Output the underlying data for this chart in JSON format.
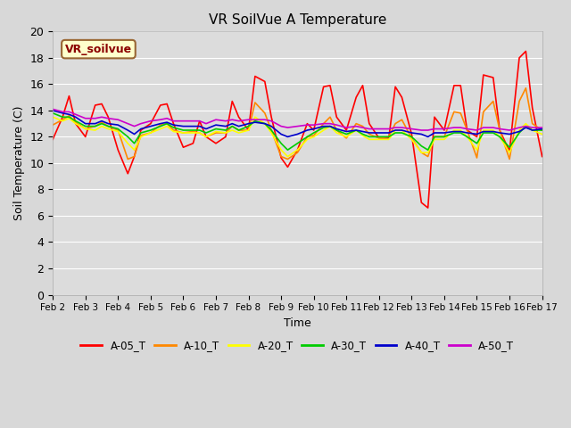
{
  "title": "VR SoilVue A Temperature",
  "xlabel": "Time",
  "ylabel": "Soil Temperature (C)",
  "ylim": [
    0,
    20
  ],
  "xlim": [
    0,
    15
  ],
  "bg_color": "#dcdcdc",
  "grid_color": "#ffffff",
  "fig_bg": "#d8d8d8",
  "label_box_text": "VR_soilvue",
  "label_box_bg": "#ffffcc",
  "label_box_border": "#996633",
  "xtick_labels": [
    "Feb 2",
    "Feb 3",
    "Feb 4",
    "Feb 5",
    "Feb 6",
    "Feb 7",
    "Feb 8",
    "Feb 9",
    "Feb 10",
    "Feb 11",
    "Feb 12",
    "Feb 13",
    "Feb 14",
    "Feb 15",
    "Feb 16",
    "Feb 17"
  ],
  "series": {
    "A-05_T": {
      "color": "#ff0000",
      "lw": 1.2,
      "x": [
        0.0,
        0.3,
        0.5,
        0.7,
        1.0,
        1.3,
        1.5,
        1.7,
        2.0,
        2.3,
        2.5,
        2.7,
        3.0,
        3.3,
        3.5,
        3.7,
        4.0,
        4.3,
        4.5,
        4.7,
        5.0,
        5.3,
        5.5,
        5.7,
        6.0,
        6.2,
        6.5,
        6.7,
        7.0,
        7.2,
        7.5,
        7.8,
        8.0,
        8.3,
        8.5,
        8.7,
        9.0,
        9.3,
        9.5,
        9.7,
        10.0,
        10.3,
        10.5,
        10.7,
        11.0,
        11.3,
        11.5,
        11.7,
        12.0,
        12.3,
        12.5,
        12.7,
        13.0,
        13.2,
        13.5,
        13.7,
        14.0,
        14.3,
        14.5,
        14.7,
        15.0
      ],
      "values": [
        11.8,
        13.5,
        15.1,
        13.0,
        12.0,
        14.4,
        14.5,
        13.5,
        11.0,
        9.2,
        10.5,
        12.5,
        13.0,
        14.4,
        14.5,
        13.0,
        11.2,
        11.5,
        13.2,
        12.0,
        11.5,
        12.0,
        14.7,
        13.5,
        12.5,
        16.6,
        16.2,
        13.5,
        10.4,
        9.7,
        11.0,
        13.0,
        12.5,
        15.8,
        15.9,
        13.5,
        12.5,
        15.0,
        15.9,
        13.0,
        11.9,
        11.9,
        15.8,
        15.0,
        12.2,
        7.0,
        6.6,
        13.5,
        12.5,
        15.9,
        15.9,
        12.5,
        12.0,
        16.7,
        16.5,
        12.5,
        10.9,
        18.0,
        18.5,
        14.2,
        10.5
      ]
    },
    "A-10_T": {
      "color": "#ff8800",
      "lw": 1.2,
      "x": [
        0.0,
        0.3,
        0.5,
        0.7,
        1.0,
        1.3,
        1.5,
        1.7,
        2.0,
        2.3,
        2.5,
        2.7,
        3.0,
        3.3,
        3.5,
        3.7,
        4.0,
        4.3,
        4.5,
        4.7,
        5.0,
        5.3,
        5.5,
        5.7,
        6.0,
        6.2,
        6.5,
        6.7,
        7.0,
        7.2,
        7.5,
        7.8,
        8.0,
        8.3,
        8.5,
        8.7,
        9.0,
        9.3,
        9.5,
        9.7,
        10.0,
        10.3,
        10.5,
        10.7,
        11.0,
        11.3,
        11.5,
        11.7,
        12.0,
        12.3,
        12.5,
        12.7,
        13.0,
        13.2,
        13.5,
        13.7,
        14.0,
        14.3,
        14.5,
        14.7,
        15.0
      ],
      "values": [
        12.9,
        13.3,
        13.6,
        13.1,
        12.6,
        12.8,
        13.1,
        12.8,
        12.5,
        10.3,
        10.5,
        12.1,
        12.3,
        12.9,
        13.0,
        12.5,
        12.3,
        12.4,
        12.3,
        12.0,
        12.3,
        12.3,
        12.8,
        12.5,
        12.5,
        14.6,
        13.8,
        12.5,
        10.5,
        10.3,
        10.8,
        12.0,
        12.1,
        13.0,
        13.5,
        12.5,
        11.9,
        13.0,
        12.8,
        12.2,
        11.9,
        12.0,
        13.0,
        13.3,
        11.9,
        10.8,
        10.5,
        12.0,
        12.0,
        13.9,
        13.8,
        12.5,
        10.4,
        13.9,
        14.7,
        12.5,
        10.3,
        14.7,
        15.7,
        13.0,
        12.5
      ]
    },
    "A-20_T": {
      "color": "#ffff00",
      "lw": 1.2,
      "x": [
        0.0,
        0.3,
        0.5,
        0.7,
        1.0,
        1.3,
        1.5,
        1.7,
        2.0,
        2.3,
        2.5,
        2.7,
        3.0,
        3.3,
        3.5,
        3.7,
        4.0,
        4.3,
        4.5,
        4.7,
        5.0,
        5.3,
        5.5,
        5.7,
        6.0,
        6.2,
        6.5,
        6.7,
        7.0,
        7.2,
        7.5,
        7.8,
        8.0,
        8.3,
        8.5,
        8.7,
        9.0,
        9.3,
        9.5,
        9.7,
        10.0,
        10.3,
        10.5,
        10.7,
        11.0,
        11.3,
        11.5,
        11.7,
        12.0,
        12.3,
        12.5,
        12.7,
        13.0,
        13.2,
        13.5,
        13.7,
        14.0,
        14.3,
        14.5,
        14.7,
        15.0
      ],
      "values": [
        13.5,
        13.2,
        13.4,
        13.0,
        12.6,
        12.5,
        12.8,
        12.6,
        12.4,
        11.5,
        11.0,
        12.0,
        12.3,
        12.6,
        12.8,
        12.4,
        12.3,
        12.3,
        12.3,
        12.0,
        12.4,
        12.3,
        12.5,
        12.3,
        12.5,
        13.5,
        13.0,
        12.3,
        11.0,
        10.5,
        11.0,
        11.8,
        12.0,
        12.5,
        12.8,
        12.3,
        12.0,
        12.5,
        12.1,
        11.8,
        11.8,
        11.8,
        12.5,
        12.5,
        11.8,
        10.8,
        10.8,
        11.8,
        11.8,
        12.5,
        12.5,
        12.0,
        11.0,
        12.5,
        12.5,
        12.0,
        10.8,
        12.5,
        13.0,
        12.5,
        12.2
      ]
    },
    "A-30_T": {
      "color": "#00cc00",
      "lw": 1.2,
      "x": [
        0.0,
        0.3,
        0.5,
        0.7,
        1.0,
        1.3,
        1.5,
        1.7,
        2.0,
        2.3,
        2.5,
        2.7,
        3.0,
        3.3,
        3.5,
        3.7,
        4.0,
        4.3,
        4.5,
        4.7,
        5.0,
        5.3,
        5.5,
        5.7,
        6.0,
        6.2,
        6.5,
        6.7,
        7.0,
        7.2,
        7.5,
        7.8,
        8.0,
        8.3,
        8.5,
        8.7,
        9.0,
        9.3,
        9.5,
        9.7,
        10.0,
        10.3,
        10.5,
        10.7,
        11.0,
        11.3,
        11.5,
        11.7,
        12.0,
        12.3,
        12.5,
        12.7,
        13.0,
        13.2,
        13.5,
        13.7,
        14.0,
        14.3,
        14.5,
        14.7,
        15.0
      ],
      "values": [
        13.8,
        13.5,
        13.5,
        13.2,
        12.8,
        12.8,
        13.0,
        12.8,
        12.6,
        12.0,
        11.5,
        12.3,
        12.5,
        12.8,
        13.0,
        12.7,
        12.5,
        12.5,
        12.5,
        12.3,
        12.6,
        12.5,
        12.8,
        12.5,
        12.8,
        13.2,
        13.0,
        12.5,
        11.5,
        11.0,
        11.5,
        12.0,
        12.3,
        12.7,
        12.8,
        12.5,
        12.2,
        12.5,
        12.2,
        12.0,
        12.0,
        12.0,
        12.3,
        12.3,
        12.0,
        11.3,
        11.0,
        12.0,
        12.0,
        12.3,
        12.3,
        12.0,
        11.5,
        12.3,
        12.3,
        12.0,
        11.2,
        12.3,
        12.8,
        12.5,
        12.5
      ]
    },
    "A-40_T": {
      "color": "#0000cc",
      "lw": 1.2,
      "x": [
        0.0,
        0.3,
        0.5,
        0.7,
        1.0,
        1.3,
        1.5,
        1.7,
        2.0,
        2.3,
        2.5,
        2.7,
        3.0,
        3.3,
        3.5,
        3.7,
        4.0,
        4.3,
        4.5,
        4.7,
        5.0,
        5.3,
        5.5,
        5.7,
        6.0,
        6.2,
        6.5,
        6.7,
        7.0,
        7.2,
        7.5,
        7.8,
        8.0,
        8.3,
        8.5,
        8.7,
        9.0,
        9.3,
        9.5,
        9.7,
        10.0,
        10.3,
        10.5,
        10.7,
        11.0,
        11.3,
        11.5,
        11.7,
        12.0,
        12.3,
        12.5,
        12.7,
        13.0,
        13.2,
        13.5,
        13.7,
        14.0,
        14.3,
        14.5,
        14.7,
        15.0
      ],
      "values": [
        14.0,
        13.8,
        13.7,
        13.5,
        13.0,
        13.0,
        13.2,
        13.0,
        12.9,
        12.5,
        12.2,
        12.6,
        12.8,
        13.0,
        13.1,
        12.9,
        12.8,
        12.8,
        12.8,
        12.6,
        12.9,
        12.8,
        13.0,
        12.8,
        13.0,
        13.1,
        13.0,
        12.8,
        12.2,
        12.0,
        12.2,
        12.5,
        12.6,
        12.8,
        12.8,
        12.6,
        12.4,
        12.5,
        12.4,
        12.3,
        12.3,
        12.3,
        12.5,
        12.5,
        12.3,
        12.2,
        12.0,
        12.3,
        12.3,
        12.4,
        12.4,
        12.3,
        12.2,
        12.4,
        12.4,
        12.3,
        12.2,
        12.4,
        12.7,
        12.5,
        12.6
      ]
    },
    "A-50_T": {
      "color": "#cc00cc",
      "lw": 1.2,
      "x": [
        0.0,
        0.3,
        0.5,
        0.7,
        1.0,
        1.3,
        1.5,
        1.7,
        2.0,
        2.3,
        2.5,
        2.7,
        3.0,
        3.3,
        3.5,
        3.7,
        4.0,
        4.3,
        4.5,
        4.7,
        5.0,
        5.3,
        5.5,
        5.7,
        6.0,
        6.2,
        6.5,
        6.7,
        7.0,
        7.2,
        7.5,
        7.8,
        8.0,
        8.3,
        8.5,
        8.7,
        9.0,
        9.3,
        9.5,
        9.7,
        10.0,
        10.3,
        10.5,
        10.7,
        11.0,
        11.3,
        11.5,
        11.7,
        12.0,
        12.3,
        12.5,
        12.7,
        13.0,
        13.2,
        13.5,
        13.7,
        14.0,
        14.3,
        14.5,
        14.7,
        15.0
      ],
      "values": [
        14.1,
        13.9,
        13.9,
        13.7,
        13.4,
        13.4,
        13.5,
        13.4,
        13.3,
        13.0,
        12.8,
        13.0,
        13.2,
        13.3,
        13.4,
        13.2,
        13.2,
        13.2,
        13.2,
        13.0,
        13.3,
        13.2,
        13.3,
        13.2,
        13.3,
        13.3,
        13.3,
        13.2,
        12.8,
        12.7,
        12.8,
        12.9,
        12.9,
        13.0,
        13.0,
        12.9,
        12.7,
        12.8,
        12.7,
        12.6,
        12.6,
        12.6,
        12.7,
        12.7,
        12.6,
        12.5,
        12.5,
        12.6,
        12.6,
        12.7,
        12.7,
        12.6,
        12.5,
        12.7,
        12.7,
        12.6,
        12.5,
        12.7,
        12.8,
        12.7,
        12.7
      ]
    }
  }
}
